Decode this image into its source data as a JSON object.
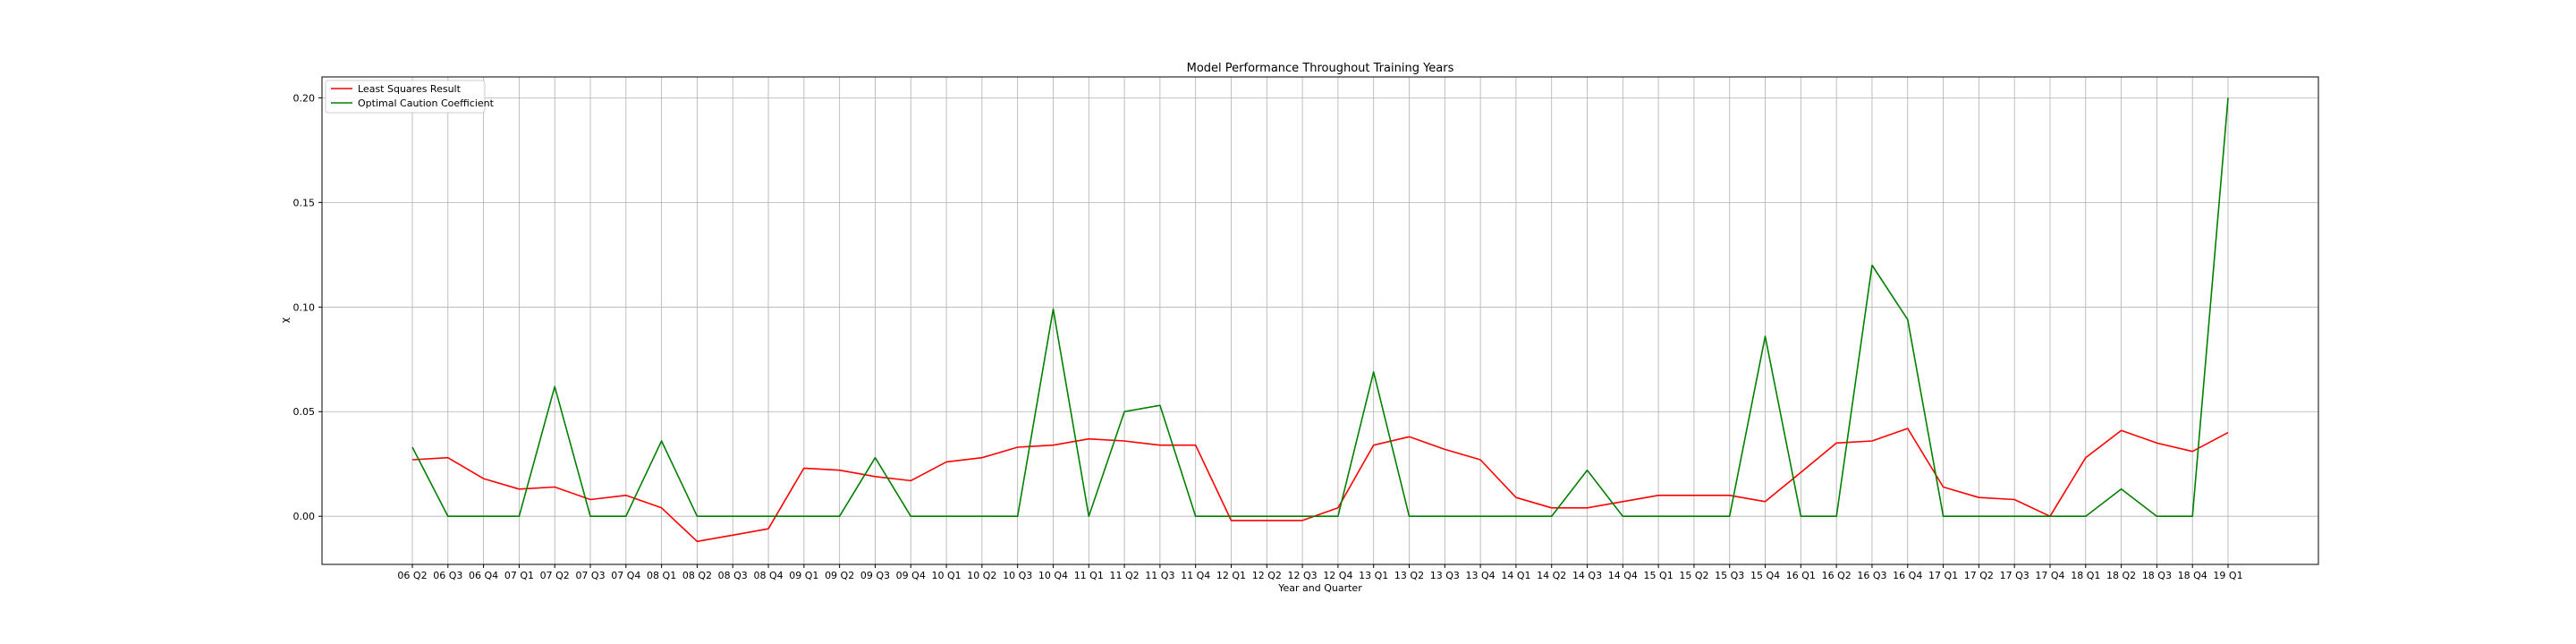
{
  "chart_data": {
    "type": "line",
    "title": "Model Performance Throughout Training Years",
    "xlabel": "Year and Quarter",
    "ylabel": "χ",
    "ylim": [
      -0.023,
      0.21
    ],
    "yticks": [
      "0.00",
      "0.05",
      "0.10",
      "0.15",
      "0.20"
    ],
    "ytick_values": [
      0.0,
      0.05,
      0.1,
      0.15,
      0.2
    ],
    "grid": true,
    "legend_position": "top-left",
    "categories": [
      "06 Q2",
      "06 Q3",
      "06 Q4",
      "07 Q1",
      "07 Q2",
      "07 Q3",
      "07 Q4",
      "08 Q1",
      "08 Q2",
      "08 Q3",
      "08 Q4",
      "09 Q1",
      "09 Q2",
      "09 Q3",
      "09 Q4",
      "10 Q1",
      "10 Q2",
      "10 Q3",
      "10 Q4",
      "11 Q1",
      "11 Q2",
      "11 Q3",
      "11 Q4",
      "12 Q1",
      "12 Q2",
      "12 Q3",
      "12 Q4",
      "13 Q1",
      "13 Q2",
      "13 Q3",
      "13 Q4",
      "14 Q1",
      "14 Q2",
      "14 Q3",
      "14 Q4",
      "15 Q1",
      "15 Q2",
      "15 Q3",
      "15 Q4",
      "16 Q1",
      "16 Q2",
      "16 Q3",
      "16 Q4",
      "17 Q1",
      "17 Q2",
      "17 Q3",
      "17 Q4",
      "18 Q1",
      "18 Q2",
      "18 Q3",
      "18 Q4",
      "19 Q1"
    ],
    "series": [
      {
        "name": "Least Squares Result",
        "color": "#ff0000",
        "values": [
          0.027,
          0.028,
          0.018,
          0.013,
          0.014,
          0.008,
          0.01,
          0.004,
          -0.012,
          -0.009,
          -0.006,
          0.023,
          0.022,
          0.019,
          0.017,
          0.026,
          0.028,
          0.033,
          0.034,
          0.037,
          0.036,
          0.034,
          0.034,
          -0.002,
          -0.002,
          -0.002,
          0.004,
          0.034,
          0.038,
          0.032,
          0.027,
          0.009,
          0.004,
          0.004,
          0.007,
          0.01,
          0.01,
          0.01,
          0.007,
          0.021,
          0.035,
          0.036,
          0.042,
          0.014,
          0.009,
          0.008,
          0.0,
          0.028,
          0.041,
          0.035,
          0.031,
          0.04
        ]
      },
      {
        "name": "Optimal Caution Coefficient",
        "color": "#008000",
        "values": [
          0.033,
          0.0,
          0.0,
          0.0,
          0.062,
          0.0,
          0.0,
          0.036,
          0.0,
          0.0,
          0.0,
          0.0,
          0.0,
          0.028,
          0.0,
          0.0,
          0.0,
          0.0,
          0.099,
          0.0,
          0.05,
          0.053,
          0.0,
          0.0,
          0.0,
          0.0,
          0.0,
          0.069,
          0.0,
          0.0,
          0.0,
          0.0,
          0.0,
          0.022,
          0.0,
          0.0,
          0.0,
          0.0,
          0.086,
          0.0,
          0.0,
          0.12,
          0.094,
          0.0,
          0.0,
          0.0,
          0.0,
          0.0,
          0.013,
          0.0,
          0.0,
          0.2
        ]
      }
    ]
  }
}
